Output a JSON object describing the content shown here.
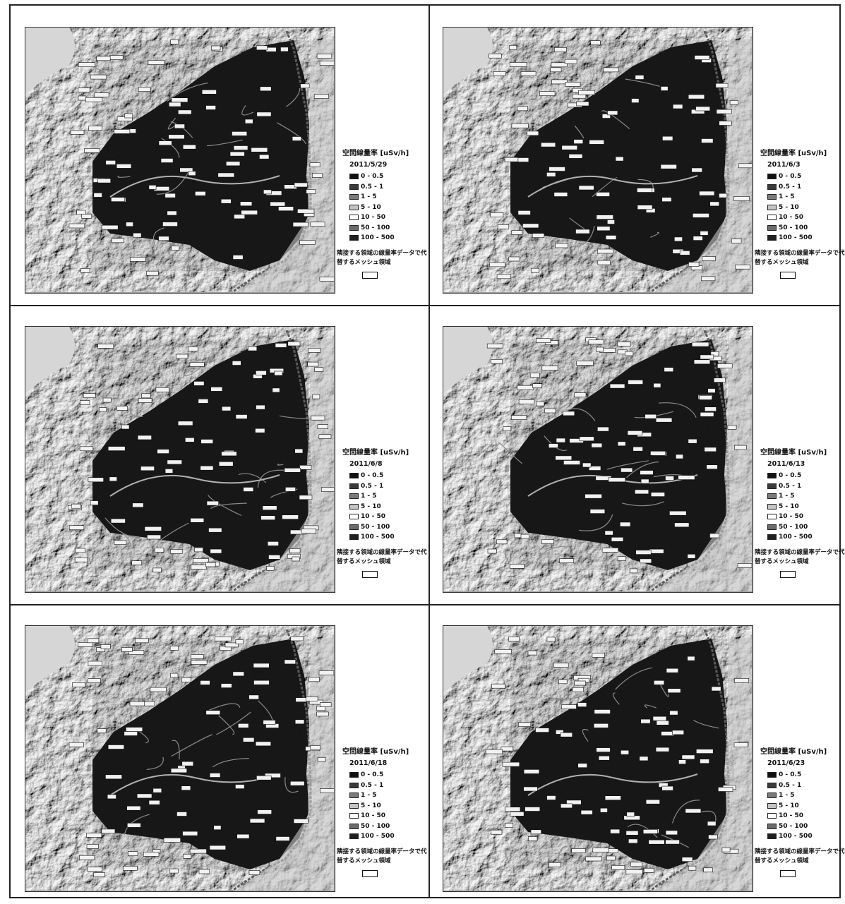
{
  "legend_common": {
    "title": "空間線量率 [uSv/h]",
    "ranges": [
      {
        "label": "0 - 0.5",
        "color": "#111111"
      },
      {
        "label": "0.5 - 1",
        "color": "#3a3a3a"
      },
      {
        "label": "1 - 5",
        "color": "#7a7a7a"
      },
      {
        "label": "5 - 10",
        "color": "#c4c4c4"
      },
      {
        "label": "10 - 50",
        "color": "#ffffff"
      },
      {
        "label": "50 - 100",
        "color": "#6a6a6a"
      },
      {
        "label": "100 - 500",
        "color": "#202020"
      }
    ],
    "note": "隣接する領域の線量率データで代替するメッシュ領域"
  },
  "panels": [
    {
      "date": "2011/5/29"
    },
    {
      "date": "2011/6/3"
    },
    {
      "date": "2011/6/8"
    },
    {
      "date": "2011/6/13"
    },
    {
      "date": "2011/6/18"
    },
    {
      "date": "2011/6/23"
    }
  ]
}
